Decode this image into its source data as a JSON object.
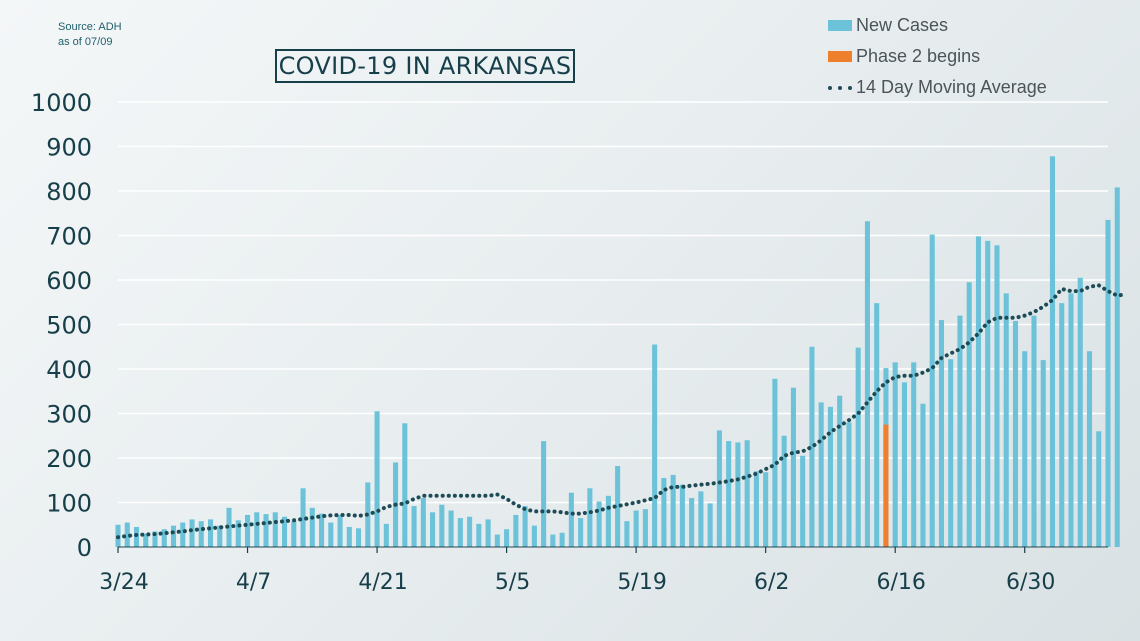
{
  "source": {
    "line1": "Source: ADH",
    "line2": "as of 07/09"
  },
  "title": "COVID-19 IN ARKANSAS",
  "legend": [
    {
      "label": "New Cases",
      "type": "bar",
      "color": "#6cc3d9"
    },
    {
      "label": "Phase 2 begins",
      "type": "bar",
      "color": "#ee7f2d"
    },
    {
      "label": "14 Day Moving Average",
      "type": "dotted-line",
      "color": "#1d4c57"
    }
  ],
  "chart_data": {
    "type": "bar",
    "title": "COVID-19 IN ARKANSAS",
    "xlabel": "",
    "ylabel": "",
    "ylim": [
      0,
      1000
    ],
    "yticks": [
      0,
      100,
      200,
      300,
      400,
      500,
      600,
      700,
      800,
      900,
      1000
    ],
    "x_start": "3/24",
    "x_end": "7/9",
    "xtick_labels": [
      "3/24",
      "4/7",
      "4/21",
      "5/5",
      "5/19",
      "6/2",
      "6/16",
      "6/30"
    ],
    "grid": true,
    "legend_position": "top-right",
    "phase2_date": "6/15",
    "series": [
      {
        "name": "New Cases",
        "type": "bar",
        "color": "#6cc3d9",
        "values": [
          50,
          55,
          45,
          30,
          35,
          40,
          48,
          55,
          62,
          58,
          62,
          48,
          88,
          60,
          72,
          78,
          74,
          78,
          68,
          58,
          132,
          88,
          75,
          55,
          72,
          45,
          42,
          145,
          305,
          52,
          190,
          278,
          92,
          110,
          78,
          95,
          82,
          65,
          68,
          52,
          62,
          28,
          40,
          72,
          92,
          48,
          238,
          28,
          32,
          122,
          65,
          132,
          102,
          115,
          182,
          58,
          82,
          85,
          455,
          155,
          162,
          140,
          110,
          125,
          98,
          262,
          238,
          235,
          240,
          170,
          168,
          378,
          250,
          358,
          205,
          450,
          325,
          315,
          340,
          280,
          448,
          732,
          548,
          402,
          415,
          370,
          415,
          322,
          702,
          510,
          422,
          520,
          595,
          698,
          688,
          678,
          570,
          508,
          440,
          520,
          420,
          878,
          548,
          570,
          605,
          440,
          260,
          735,
          808
        ]
      },
      {
        "name": "Phase 2 begins",
        "type": "bar",
        "color": "#ee7f2d",
        "date": "6/15",
        "value": 275
      },
      {
        "name": "14 Day Moving Average",
        "type": "line",
        "style": "dotted",
        "color": "#1d4c57",
        "values": [
          22,
          25,
          27,
          28,
          29,
          31,
          33,
          35,
          38,
          40,
          42,
          44,
          46,
          48,
          50,
          52,
          54,
          56,
          58,
          60,
          63,
          66,
          69,
          71,
          72,
          72,
          70,
          73,
          80,
          90,
          95,
          98,
          108,
          115,
          115,
          115,
          115,
          115,
          115,
          115,
          115,
          118,
          108,
          95,
          85,
          80,
          80,
          80,
          78,
          75,
          75,
          78,
          82,
          88,
          92,
          96,
          100,
          105,
          110,
          128,
          135,
          135,
          138,
          140,
          142,
          145,
          148,
          152,
          158,
          165,
          175,
          185,
          205,
          212,
          215,
          225,
          240,
          258,
          272,
          285,
          300,
          325,
          350,
          370,
          382,
          385,
          385,
          392,
          402,
          425,
          435,
          445,
          460,
          480,
          505,
          515,
          515,
          515,
          520,
          528,
          540,
          555,
          580,
          575,
          575,
          585,
          588,
          575,
          565,
          568
        ]
      }
    ]
  }
}
